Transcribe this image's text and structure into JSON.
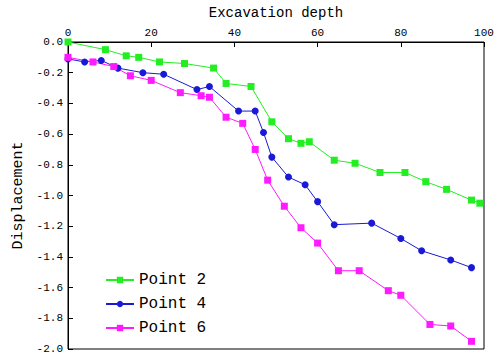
{
  "chart_data": {
    "type": "line",
    "x_label": "Excavation depth",
    "y_label": "Displacement",
    "xlim": [
      0,
      100
    ],
    "xticks": [
      0,
      20,
      40,
      60,
      80,
      100
    ],
    "ylim": [
      -2,
      0
    ],
    "yticks": [
      {
        "value": -2,
        "label": "-2.0"
      },
      -1.8,
      -1.6,
      -1.4,
      -1.2,
      {
        "value": -1,
        "label": "-1.0"
      },
      -0.8,
      -0.6,
      -0.4,
      -0.2,
      {
        "value": 0,
        "label": "0.0"
      }
    ],
    "grid": false,
    "legend": "lower left",
    "series": [
      {
        "name": "Point 2",
        "color": "#22ee22",
        "marker": "square",
        "line_style": "solid",
        "x": [
          0,
          9,
          14,
          17,
          22,
          28,
          35,
          38,
          44,
          49,
          53,
          56,
          58,
          64,
          69,
          75,
          81,
          86,
          91,
          97,
          99
        ],
        "values": [
          0.0,
          -0.05,
          -0.09,
          -0.1,
          -0.13,
          -0.14,
          -0.17,
          -0.27,
          -0.29,
          -0.52,
          -0.63,
          -0.66,
          -0.65,
          -0.77,
          -0.79,
          -0.85,
          -0.85,
          -0.91,
          -0.96,
          -1.03,
          -1.05
        ]
      },
      {
        "name": "Point 4",
        "color": "#1a1ad6",
        "marker": "circle",
        "line_style": "solid",
        "x": [
          0,
          4,
          8,
          12,
          18,
          23,
          31,
          34,
          41,
          45,
          47,
          49,
          53,
          57,
          60,
          64,
          73,
          80,
          85,
          92,
          97
        ],
        "values": [
          -0.11,
          -0.13,
          -0.12,
          -0.17,
          -0.2,
          -0.21,
          -0.31,
          -0.29,
          -0.45,
          -0.45,
          -0.59,
          -0.75,
          -0.88,
          -0.93,
          -1.04,
          -1.19,
          -1.18,
          -1.28,
          -1.36,
          -1.42,
          -1.47
        ]
      },
      {
        "name": "Point 6",
        "color": "#ff1aff",
        "marker": "square",
        "line_style": "solid",
        "x": [
          0,
          6,
          11,
          15,
          20,
          27,
          32,
          34,
          38,
          42,
          45,
          48,
          52,
          56,
          60,
          65,
          70,
          77,
          80,
          87,
          92,
          97
        ],
        "values": [
          -0.1,
          -0.13,
          -0.16,
          -0.22,
          -0.25,
          -0.33,
          -0.35,
          -0.36,
          -0.49,
          -0.53,
          -0.7,
          -0.9,
          -1.07,
          -1.21,
          -1.31,
          -1.49,
          -1.49,
          -1.62,
          -1.65,
          -1.84,
          -1.85,
          -1.95
        ]
      }
    ]
  }
}
